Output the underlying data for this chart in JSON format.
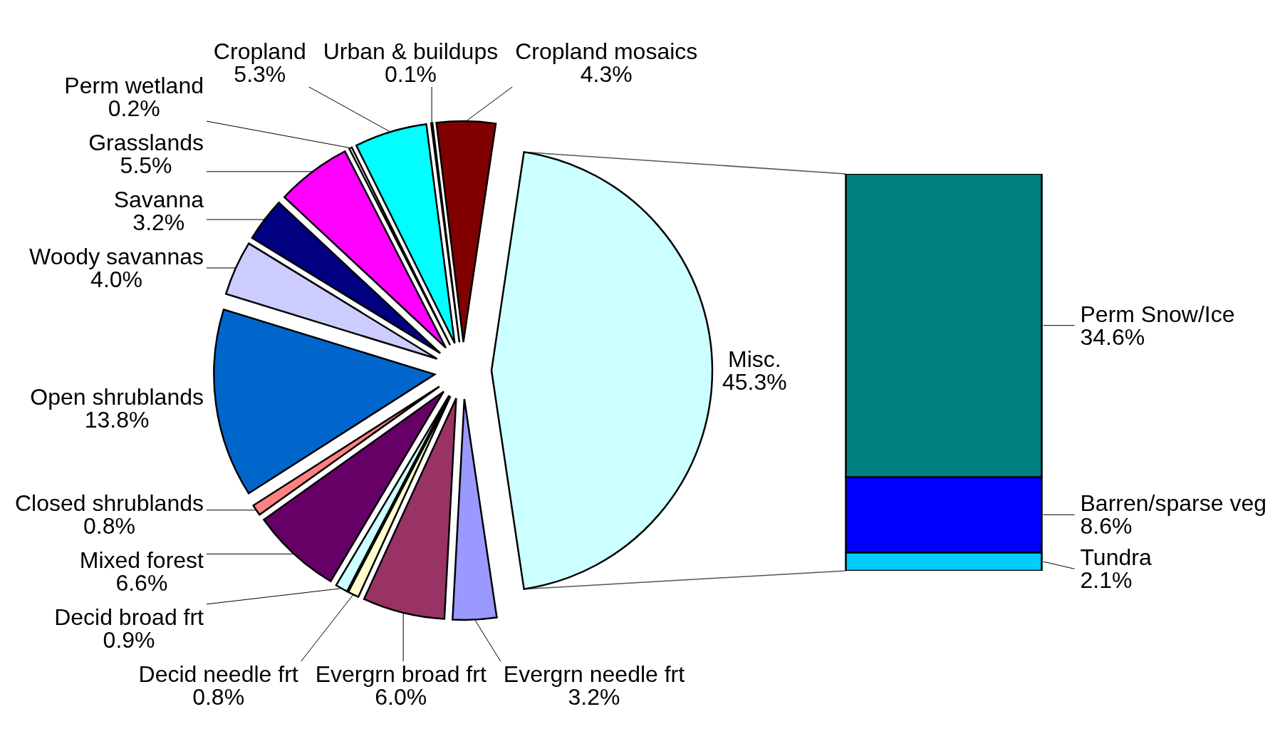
{
  "chart_data": [
    {
      "type": "pie",
      "categories": [
        "Evergrn needle frt",
        "Evergrn broad frt",
        "Decid needle frt",
        "Decid broad frt",
        "Mixed forest",
        "Closed shrublands",
        "Open shrublands",
        "Woody savannas",
        "Savanna",
        "Grasslands",
        "Perm wetland",
        "Cropland",
        "Urban & buildups",
        "Cropland mosaics",
        "Misc."
      ],
      "values": [
        3.2,
        6.0,
        0.8,
        0.9,
        6.6,
        0.8,
        13.8,
        4.0,
        3.2,
        5.5,
        0.2,
        5.3,
        0.1,
        4.3,
        45.3
      ],
      "value_labels": [
        "3.2%",
        "6.0%",
        "0.8%",
        "0.9%",
        "6.6%",
        "0.8%",
        "13.8%",
        "4.0%",
        "3.2%",
        "5.5%",
        "0.2%",
        "5.3%",
        "0.1%",
        "4.3%",
        "45.3%"
      ],
      "colors": [
        "#9999ff",
        "#993366",
        "#ffffcc",
        "#ccffff",
        "#660066",
        "#ff8080",
        "#0066cc",
        "#ccccff",
        "#000080",
        "#ff00ff",
        "#ffffff",
        "#00ffff",
        "#ffffff",
        "#800000",
        "#ccffff"
      ]
    },
    {
      "type": "bar",
      "stacked": true,
      "categories": [
        null
      ],
      "tick_labels": false,
      "series": [
        {
          "name": "Tundra",
          "color": "#00ccff",
          "values": [
            2.1
          ],
          "value_labels": [
            "2.1%"
          ]
        },
        {
          "name": "Barren/sparse veg",
          "color": "#0000ff",
          "values": [
            8.6
          ],
          "value_labels": [
            "8.6%"
          ]
        },
        {
          "name": "Perm Snow/Ice",
          "color": "#008080",
          "values": [
            34.6
          ],
          "value_labels": [
            "34.6%"
          ]
        }
      ]
    }
  ]
}
